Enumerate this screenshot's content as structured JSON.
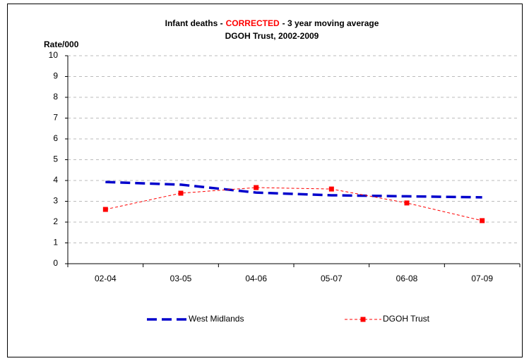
{
  "chart_data": {
    "type": "line",
    "title": "Infant deaths -",
    "title_highlight": "CORRECTED",
    "title_rest": "-  3 year moving average",
    "subtitle": "DGOH Trust, 2002-2009",
    "y_label": "Rate/000",
    "categories": [
      "02-04",
      "03-05",
      "04-06",
      "05-07",
      "06-08",
      "07-09"
    ],
    "series": [
      {
        "name": "West Midlands",
        "color": "#0000cc",
        "values": [
          3.93,
          3.8,
          3.42,
          3.29,
          3.24,
          3.19
        ]
      },
      {
        "name": "DGOH Trust",
        "color": "#ff0000",
        "values": [
          2.61,
          3.39,
          3.66,
          3.59,
          2.92,
          2.07
        ]
      }
    ],
    "highlight_color": "#ff0000",
    "ylim": [
      0,
      10
    ],
    "yticks": [
      0,
      1,
      2,
      3,
      4,
      5,
      6,
      7,
      8,
      9,
      10
    ],
    "grid": true
  }
}
